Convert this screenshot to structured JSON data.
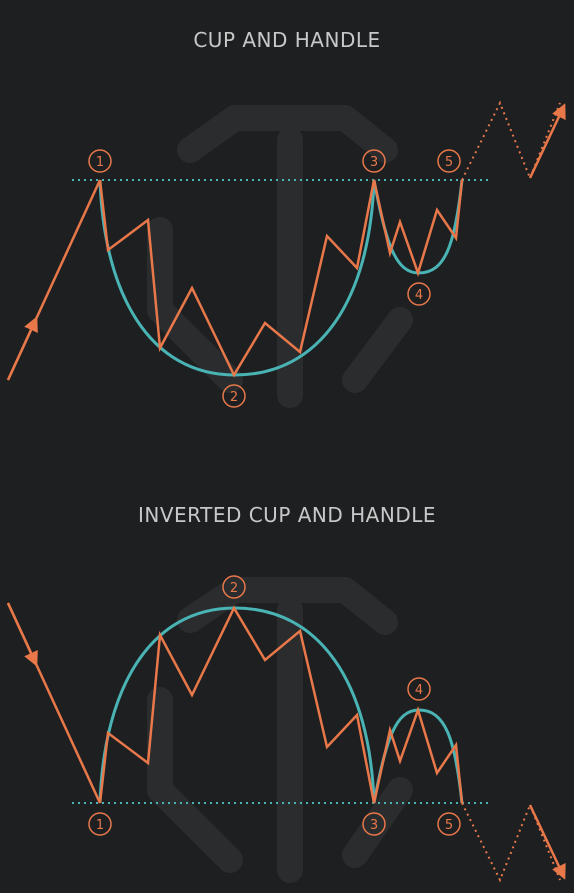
{
  "diagrams": [
    {
      "title": "CUP AND HANDLE",
      "points": [
        "1",
        "2",
        "3",
        "4",
        "5"
      ]
    },
    {
      "title": "INVERTED CUP AND HANDLE",
      "points": [
        "1",
        "2",
        "3",
        "4",
        "5"
      ]
    }
  ],
  "colors": {
    "background": "#1e1f21",
    "price_line": "#e8784a",
    "cup_curve": "#4ab3b4",
    "resistance_line": "#4ab3b4",
    "watermark": "#2a2c2e"
  }
}
